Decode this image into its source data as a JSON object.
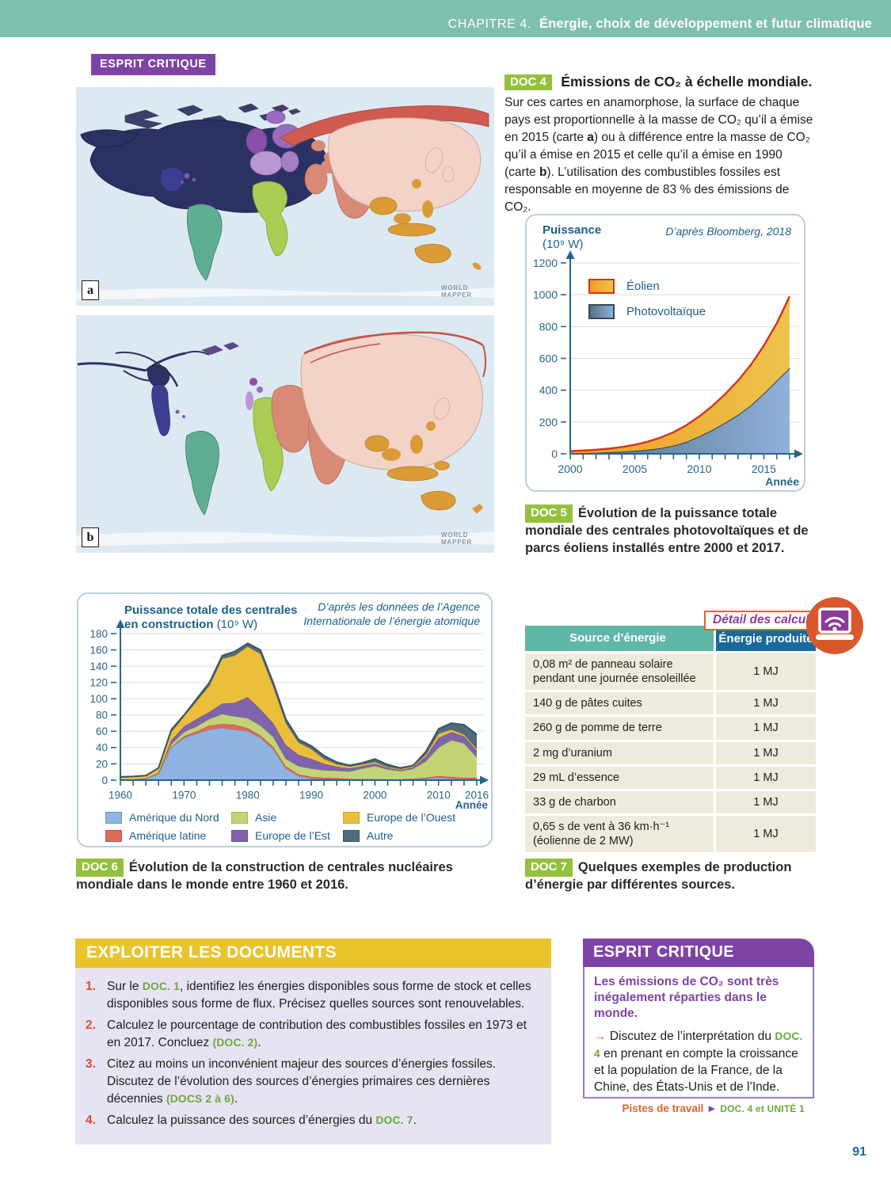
{
  "header": {
    "chapter": "CHAPITRE 4.",
    "title": "Énergie, choix de développement et futur climatique"
  },
  "esprit_badge_top": "ESPRIT CRITIQUE",
  "colors": {
    "header_teal": "#7fbfae",
    "purple": "#7d44a6",
    "doc_badge_green": "#94c13d",
    "exploiter_yellow": "#e9c32b",
    "exploiter_lavender": "#e7e3f2",
    "question_number_red": "#d9502e",
    "doc_ref_green": "#69a938",
    "orange_accent": "#e0603a",
    "table_header_teal": "#5fb7a5",
    "table_header_blue": "#19699c",
    "table_row_cream": "#efebdc",
    "chart_text_blue": "#1c5f88",
    "page_number_blue": "#19699c",
    "map_ocean": "#dde9f2"
  },
  "maps": {
    "label_a": "a",
    "label_b": "b",
    "watermark_lines": [
      "WORLD",
      "MAPPER"
    ],
    "regions": [
      {
        "name": "Amérique du Nord",
        "color": "#2b3263"
      },
      {
        "name": "Mexique / Amérique centrale",
        "color": "#3c3f91"
      },
      {
        "name": "Amérique du Sud",
        "color": "#5fae91"
      },
      {
        "name": "Europe",
        "color": "#9a6cbd"
      },
      {
        "name": "Russie",
        "color": "#cf5a50"
      },
      {
        "name": "Chine",
        "color": "#f3d3c8"
      },
      {
        "name": "Inde / Moyen-Orient",
        "color": "#d88a77"
      },
      {
        "name": "Afrique",
        "color": "#abcb53"
      },
      {
        "name": "Asie du Sud-Est / Océanie",
        "color": "#da9a35"
      }
    ]
  },
  "doc4": {
    "badge": "DOC 4",
    "title": "Émissions de CO₂ à échelle mondiale.",
    "body_segments": [
      {
        "t": "Sur ces cartes en anamorphose, la surface de chaque pays est proportionnelle à la masse de CO₂ qu’il a émise en 2015 (carte "
      },
      {
        "t": "a",
        "s": "b"
      },
      {
        "t": ") ou à différence entre la masse de CO₂ qu’il a émise en 2015 et celle qu’il a émise en 1990 (carte "
      },
      {
        "t": "b",
        "s": "b"
      },
      {
        "t": "). L’utilisation des combustibles fossiles est responsable en moyenne de 83 % des émissions de CO₂."
      }
    ]
  },
  "doc5": {
    "badge": "DOC 5",
    "caption": "Évolution de la puissance totale mondiale des centrales photovoltaïques et de parcs éoliens installés entre 2000 et 2017."
  },
  "doc6": {
    "badge": "DOC 6",
    "caption": "Évolution de la construction de centrales nucléaires mondiale dans le monde entre 1960 et 2016."
  },
  "doc7": {
    "badge": "DOC 7",
    "caption": "Quelques exemples de production d’énergie par différentes sources.",
    "detail_label": "Détail des calculs",
    "table": {
      "headers": [
        "Source d’énergie",
        "Énergie produite"
      ],
      "rows": [
        {
          "source": "0,08 m² de panneau solaire pendant une journée ensoleillée",
          "energy": "1 MJ"
        },
        {
          "source": "140 g de pâtes cuites",
          "energy": "1 MJ"
        },
        {
          "source": "260 g de pomme de terre",
          "energy": "1 MJ"
        },
        {
          "source": "2 mg d’uranium",
          "energy": "1 MJ"
        },
        {
          "source": "29 mL d’essence",
          "energy": "1 MJ"
        },
        {
          "source": "33 g de charbon",
          "energy": "1 MJ"
        },
        {
          "source": "0,65 s de vent à 36 km·h⁻¹ (éolienne de 2 MW)",
          "energy": "1 MJ"
        }
      ]
    }
  },
  "exploiter": {
    "header": "EXPLOITER LES DOCUMENTS",
    "items": [
      {
        "num": "1.",
        "segments": [
          {
            "t": "Sur le "
          },
          {
            "t": "DOC. 1",
            "s": "g"
          },
          {
            "t": ", identifiez les énergies disponibles sous forme de stock et celles disponibles sous forme de flux. Précisez quelles sources sont renouvelables."
          }
        ]
      },
      {
        "num": "2.",
        "segments": [
          {
            "t": "Calculez le pourcentage de contribution des combustibles fossiles en 1973 et en 2017. Concluez "
          },
          {
            "t": "(DOC. 2)",
            "s": "g"
          },
          {
            "t": "."
          }
        ]
      },
      {
        "num": "3.",
        "segments": [
          {
            "t": "Citez au moins un inconvénient majeur des sources d’énergies fossiles. Discutez de l’évolution des sources d’énergies primaires ces dernières décennies "
          },
          {
            "t": "(DOCS 2 à 6)",
            "s": "g"
          },
          {
            "t": "."
          }
        ]
      },
      {
        "num": "4.",
        "segments": [
          {
            "t": "Calculez la puissance des sources d’énergies du "
          },
          {
            "t": "DOC. 7",
            "s": "g"
          },
          {
            "t": "."
          }
        ]
      }
    ]
  },
  "esprit_box": {
    "header": "ESPRIT CRITIQUE",
    "intro": "Les émissions de CO₂ sont très inégalement réparties dans le monde.",
    "point_segments": [
      {
        "t": "→ ",
        "s": "o"
      },
      {
        "t": "Discutez de l’interprétation du "
      },
      {
        "t": "DOC. 4",
        "s": "g"
      },
      {
        "t": " en prenant en compte la croissance et la population de la France, de la Chine, des États-Unis et de l’Inde."
      }
    ],
    "footer_segments": [
      {
        "t": "Pistes de travail",
        "s": "o"
      },
      {
        "t": " ► ",
        "s": "p"
      },
      {
        "t": "DOC. 4 et UNITÉ 1",
        "s": "g"
      }
    ]
  },
  "page_number": "91",
  "chart_data": [
    {
      "id": "doc5",
      "type": "area",
      "stacked": true,
      "title_main": "Puissance",
      "title_unit": "(10⁹ W)",
      "source": "D’après Bloomberg, 2018",
      "xlabel": "Année",
      "ylabel": "Puissance (10⁹ W)",
      "grid": true,
      "legend_position": "top-left",
      "x": [
        2000,
        2001,
        2002,
        2003,
        2004,
        2005,
        2006,
        2007,
        2008,
        2009,
        2010,
        2011,
        2012,
        2013,
        2014,
        2015,
        2016,
        2017
      ],
      "xticks": [
        2000,
        2005,
        2010,
        2015
      ],
      "ylim": [
        0,
        1200
      ],
      "ytick_step": 200,
      "legend": [
        "Éolien",
        "Photovoltaïque"
      ],
      "series": [
        {
          "name": "Photovoltaïque",
          "fill_from": "#57707f",
          "fill_to": "#8fb1dc",
          "stroke": "#31485c",
          "values": [
            4,
            5,
            7,
            10,
            14,
            19,
            26,
            36,
            52,
            75,
            110,
            150,
            195,
            245,
            305,
            380,
            460,
            540
          ]
        },
        {
          "name": "Éolien",
          "fill_from": "#f09d28",
          "fill_to": "#edc34b",
          "stroke": "#d23420",
          "values": [
            13,
            16,
            19,
            23,
            29,
            38,
            50,
            66,
            84,
            105,
            125,
            150,
            180,
            215,
            255,
            300,
            360,
            450
          ]
        }
      ]
    },
    {
      "id": "doc6",
      "type": "area",
      "stacked": true,
      "title_main": "Puissance totale des centrales",
      "title_main2": "en construction",
      "title_unit": "(10⁹ W)",
      "source_lines": [
        "D’après les données de l’Agence",
        "Internationale de l’énergie atomique"
      ],
      "xlabel": "Année",
      "ylabel": "Puissance totale des centrales en construction (10⁹ W)",
      "grid": true,
      "legend_position": "bottom",
      "x": [
        1960,
        1962,
        1964,
        1966,
        1968,
        1970,
        1972,
        1974,
        1976,
        1978,
        1980,
        1982,
        1984,
        1986,
        1988,
        1990,
        1992,
        1994,
        1996,
        1998,
        2000,
        2002,
        2004,
        2006,
        2008,
        2010,
        2012,
        2014,
        2016
      ],
      "xticks": [
        1960,
        1970,
        1980,
        1990,
        2000,
        2010,
        2016
      ],
      "ylim": [
        0,
        180
      ],
      "ytick_step": 20,
      "legend": [
        "Amérique du Nord",
        "Asie",
        "Europe de l’Ouest",
        "Amérique latine",
        "Europe de l’Est",
        "Autre"
      ],
      "series": [
        {
          "name": "Amérique du Nord",
          "color": "#8fb4e2",
          "stroke": "#6f94bf",
          "values": [
            0.5,
            1,
            2,
            8,
            40,
            52,
            57,
            62,
            64,
            62,
            60,
            52,
            38,
            14,
            5,
            2,
            1,
            1,
            0.5,
            0.5,
            0.5,
            0.5,
            0.5,
            1,
            2,
            3,
            2,
            1,
            1
          ]
        },
        {
          "name": "Amérique latine",
          "color": "#dd6b5a",
          "stroke": "#bd5044",
          "values": [
            0,
            0,
            0,
            0,
            1,
            2,
            3,
            5,
            5,
            6,
            4,
            3,
            3,
            3,
            2,
            2,
            2,
            1.5,
            1,
            0.7,
            0.7,
            0.5,
            0.5,
            0.7,
            1,
            2,
            2,
            2,
            2
          ]
        },
        {
          "name": "Asie",
          "color": "#c3d476",
          "stroke": "#a2ba49",
          "values": [
            0,
            0,
            0,
            1,
            3,
            5,
            6,
            8,
            12,
            10,
            12,
            12,
            12,
            9,
            10,
            10,
            9,
            9,
            9,
            13,
            16,
            12,
            10,
            12,
            20,
            35,
            45,
            42,
            25
          ]
        },
        {
          "name": "Europe de l’Est",
          "color": "#7f63ad",
          "stroke": "#69528f",
          "values": [
            0,
            0,
            0,
            0,
            5,
            7,
            9,
            9,
            13,
            17,
            26,
            20,
            17,
            17,
            14,
            12,
            8,
            5,
            4,
            3,
            3,
            2,
            1.5,
            2,
            6,
            12,
            10,
            9,
            8
          ]
        },
        {
          "name": "Europe de l’Ouest",
          "color": "#ecbe3c",
          "stroke": "#d3a41e",
          "values": [
            3,
            3,
            3,
            5,
            10,
            12,
            22,
            32,
            55,
            58,
            62,
            68,
            45,
            27,
            15,
            12,
            6,
            3,
            2,
            2,
            2,
            1,
            1,
            1,
            2,
            5,
            3,
            2,
            2
          ]
        },
        {
          "name": "Autre",
          "color": "#4d6c7d",
          "stroke": "#3b5564",
          "values": [
            0.5,
            0.5,
            0.5,
            1,
            3,
            2,
            3,
            4,
            4,
            5,
            4,
            5,
            5,
            5,
            4,
            4,
            4,
            2.5,
            1.5,
            2,
            3.8,
            3,
            1.5,
            1.3,
            4,
            6,
            8,
            12,
            18
          ]
        }
      ]
    }
  ]
}
